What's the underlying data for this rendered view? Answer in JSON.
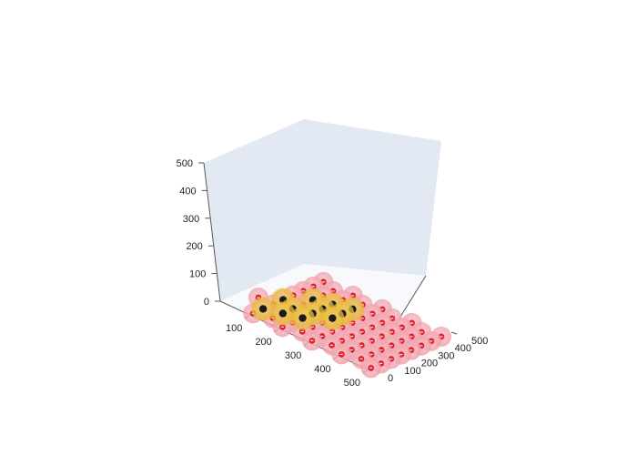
{
  "chart_data": {
    "type": "scatter3d",
    "title": "",
    "xlabel": "",
    "ylabel": "",
    "zlabel": "",
    "grid": false,
    "legend": "none",
    "xlim": [
      0,
      500
    ],
    "ylim": [
      0,
      500
    ],
    "zlim": [
      0,
      500
    ],
    "x_ticks": [
      "100",
      "200",
      "300",
      "400",
      "500"
    ],
    "y_ticks": [
      "0",
      "100",
      "200",
      "300",
      "400",
      "500"
    ],
    "z_ticks": [
      "0",
      "100",
      "200",
      "300",
      "400",
      "500"
    ],
    "x_tick_values": [
      100,
      200,
      300,
      400,
      500
    ],
    "y_tick_values": [
      0,
      100,
      200,
      300,
      400,
      500
    ],
    "z_tick_values": [
      0,
      100,
      200,
      300,
      400,
      500
    ],
    "colors": {
      "backwall": "#e3e9f3",
      "halo": "#f2a6b0",
      "core": "#e01f2b",
      "highlight": "#e8c23a",
      "highlight_core": "#1a1a1a"
    },
    "series": [
      {
        "marker": "halo",
        "x": [
          100,
          100,
          100,
          100,
          100,
          100,
          100,
          100,
          200,
          200,
          200,
          200,
          200,
          200,
          200,
          200,
          300,
          300,
          300,
          300,
          300,
          300,
          300,
          300,
          400,
          400,
          400,
          400,
          400,
          400,
          400,
          400,
          500,
          500,
          500,
          500,
          500,
          500,
          500,
          500,
          150,
          150,
          150,
          150,
          150,
          150,
          150,
          250,
          250,
          250,
          250,
          250,
          250,
          250,
          350,
          350,
          350,
          350,
          350,
          350,
          350,
          450,
          450,
          450,
          450,
          450,
          450,
          450,
          50
        ],
        "y": [
          20,
          80,
          140,
          200,
          260,
          320,
          380,
          440,
          20,
          80,
          140,
          200,
          260,
          320,
          380,
          440,
          20,
          80,
          140,
          200,
          260,
          320,
          380,
          440,
          20,
          80,
          140,
          200,
          260,
          320,
          380,
          440,
          20,
          80,
          140,
          200,
          260,
          320,
          380,
          440,
          50,
          110,
          170,
          230,
          290,
          350,
          410,
          50,
          110,
          170,
          230,
          290,
          350,
          410,
          50,
          110,
          170,
          230,
          290,
          350,
          410,
          50,
          110,
          170,
          230,
          290,
          350,
          410,
          140
        ],
        "z": [
          0,
          0,
          0,
          0,
          0,
          0,
          0,
          0,
          0,
          0,
          0,
          0,
          0,
          0,
          0,
          0,
          0,
          0,
          0,
          0,
          0,
          0,
          0,
          0,
          0,
          0,
          0,
          0,
          0,
          0,
          0,
          0,
          0,
          0,
          0,
          0,
          0,
          0,
          0,
          0,
          0,
          0,
          0,
          0,
          0,
          0,
          0,
          0,
          0,
          0,
          0,
          0,
          0,
          0,
          0,
          0,
          0,
          0,
          0,
          0,
          0,
          0,
          0,
          0,
          0,
          0,
          0,
          0,
          0
        ]
      },
      {
        "marker": "highlight",
        "x": [
          100,
          150,
          200,
          100,
          150,
          200,
          250,
          150,
          200,
          250,
          200,
          250
        ],
        "y": [
          80,
          110,
          140,
          200,
          170,
          200,
          230,
          290,
          260,
          290,
          320,
          350
        ],
        "z": [
          0,
          0,
          0,
          0,
          0,
          0,
          0,
          0,
          0,
          0,
          0,
          0
        ]
      }
    ]
  }
}
